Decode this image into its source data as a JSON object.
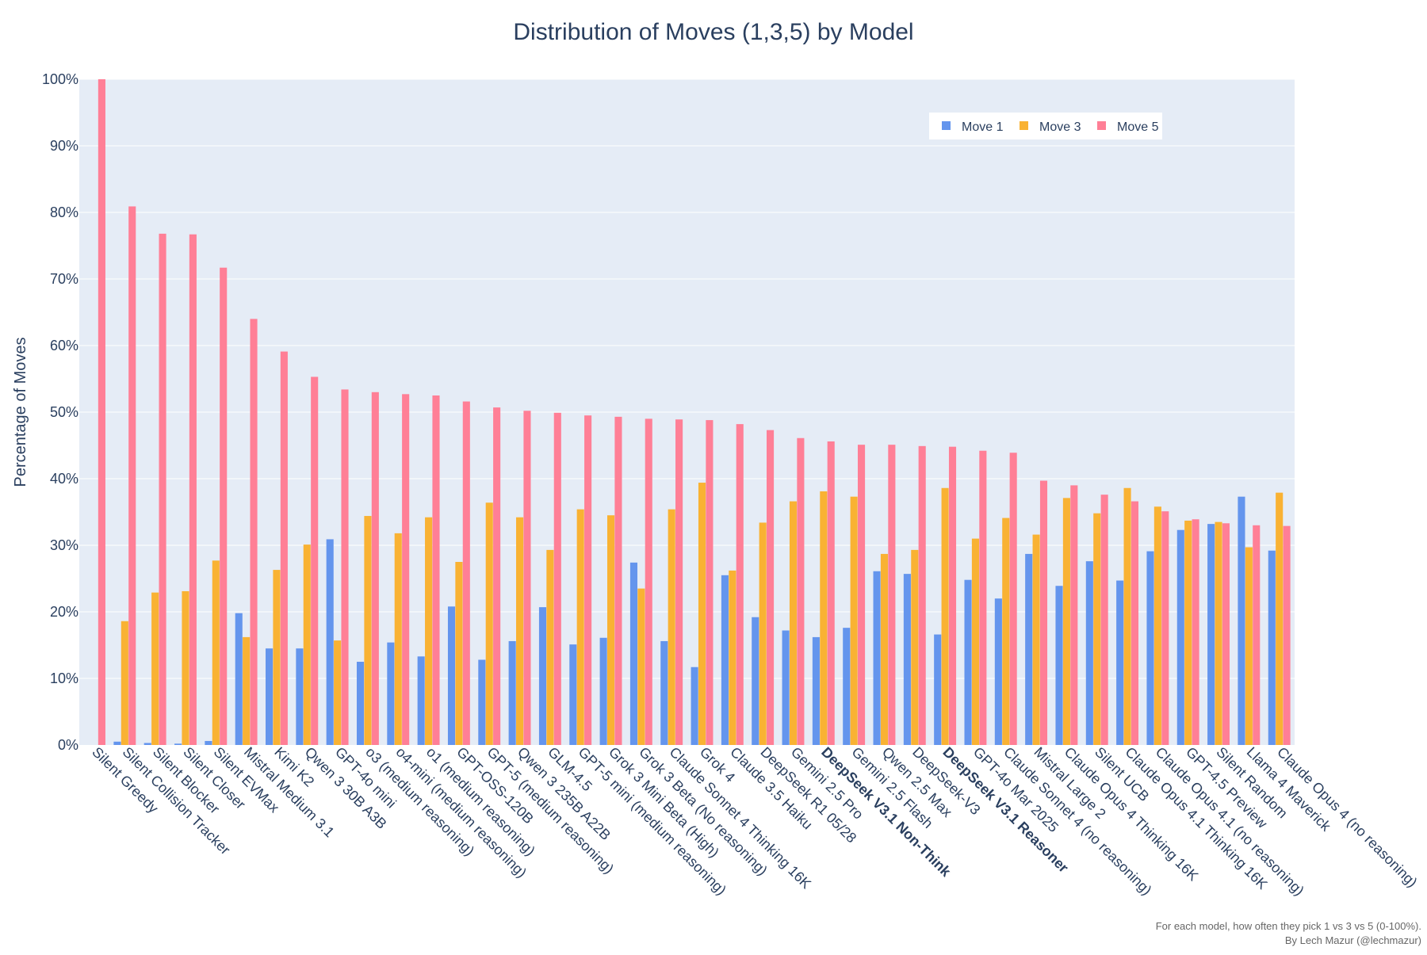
{
  "chart_data": {
    "type": "bar",
    "title": "Distribution of Moves (1,3,5) by Model",
    "xlabel": "",
    "ylabel": "Percentage of Moves",
    "ylim": [
      0,
      100
    ],
    "ytick_values": [
      0,
      10,
      20,
      30,
      40,
      50,
      60,
      70,
      80,
      90,
      100
    ],
    "ytick_labels": [
      "0%",
      "10%",
      "20%",
      "30%",
      "40%",
      "50%",
      "60%",
      "70%",
      "80%",
      "90%",
      "100%"
    ],
    "grid": true,
    "legend_position": "top-right",
    "bold_categories": [
      "DeepSeek V3.1 Non-Think",
      "DeepSeek V3.1 Reasoner"
    ],
    "categories": [
      "Silent Greedy",
      "Silent Collision Tracker",
      "Silent Blocker",
      "Silent Closer",
      "Silent EVMax",
      "Mistral Medium 3.1",
      "Kimi K2",
      "Qwen 3 30B A3B",
      "GPT-4o mini",
      "o3 (medium reasoning)",
      "o4-mini (medium reasoning)",
      "o1 (medium reasoning)",
      "GPT-OSS-120B",
      "GPT-5 (medium reasoning)",
      "Qwen 3 235B A22B",
      "GLM-4.5",
      "GPT-5 mini (medium reasoning)",
      "Grok 3 Mini Beta (High)",
      "Grok 3 Beta (No reasoning)",
      "Claude Sonnet 4 Thinking 16K",
      "Grok 4",
      "Claude 3.5 Haiku",
      "DeepSeek R1 05/28",
      "Gemini 2.5 Pro",
      "DeepSeek V3.1 Non-Think",
      "Gemini 2.5 Flash",
      "Qwen 2.5 Max",
      "DeepSeek-V3",
      "DeepSeek V3.1 Reasoner",
      "GPT-4o Mar 2025",
      "Claude Sonnet 4 (no reasoning)",
      "Mistral Large 2",
      "Claude Opus 4 Thinking 16K",
      "Silent UCB",
      "Claude Opus 4.1 Thinking 16K",
      "Claude Opus 4.1 (no reasoning)",
      "GPT-4.5 Preview",
      "Silent Random",
      "Llama 4 Maverick",
      "Claude Opus 4 (no reasoning)"
    ],
    "series": [
      {
        "name": "Move 1",
        "color": "#6495ED",
        "values": [
          0.0,
          0.5,
          0.3,
          0.2,
          0.6,
          19.8,
          14.5,
          14.5,
          30.9,
          12.5,
          15.4,
          13.3,
          20.8,
          12.8,
          15.6,
          20.7,
          15.1,
          16.1,
          27.4,
          15.6,
          11.7,
          25.5,
          19.2,
          17.2,
          16.2,
          17.6,
          26.1,
          25.7,
          16.6,
          24.8,
          22.0,
          28.7,
          23.9,
          27.6,
          24.7,
          29.1,
          32.3,
          33.2,
          37.3,
          29.2
        ]
      },
      {
        "name": "Move 3",
        "color": "#F9B233",
        "values": [
          0.0,
          18.6,
          22.9,
          23.1,
          27.7,
          16.2,
          26.3,
          30.1,
          15.7,
          34.4,
          31.8,
          34.2,
          27.5,
          36.4,
          34.2,
          29.3,
          35.4,
          34.5,
          23.5,
          35.4,
          39.4,
          26.2,
          33.4,
          36.6,
          38.1,
          37.3,
          28.7,
          29.3,
          38.6,
          31.0,
          34.1,
          31.6,
          37.1,
          34.8,
          38.6,
          35.8,
          33.7,
          33.5,
          29.7,
          37.9
        ]
      },
      {
        "name": "Move 5",
        "color": "#FF7F96",
        "values": [
          100.0,
          80.9,
          76.8,
          76.7,
          71.7,
          64.0,
          59.1,
          55.3,
          53.4,
          53.0,
          52.7,
          52.5,
          51.6,
          50.7,
          50.2,
          49.9,
          49.5,
          49.3,
          49.0,
          48.9,
          48.8,
          48.2,
          47.3,
          46.1,
          45.6,
          45.1,
          45.1,
          44.9,
          44.8,
          44.2,
          43.9,
          39.7,
          39.0,
          37.6,
          36.6,
          35.1,
          33.9,
          33.3,
          33.0,
          32.9
        ]
      }
    ],
    "annotations": [
      "For each model, how often they pick 1 vs 3 vs 5 (0-100%).",
      "By Lech Mazur (@lechmazur)"
    ]
  }
}
